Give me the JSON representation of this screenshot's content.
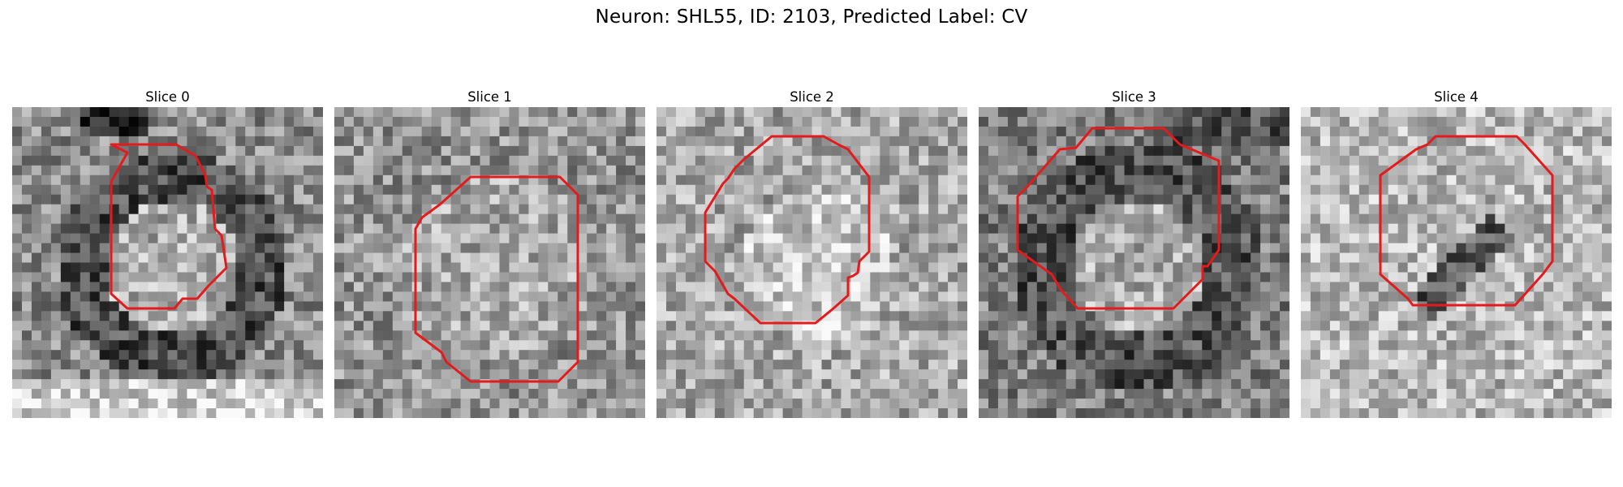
{
  "figure": {
    "title": "Neuron: SHL55, ID: 2103, Predicted Label: CV"
  },
  "panels": [
    {
      "title": "Slice 0",
      "shade": "dark ring around bright center",
      "contour_color": "#e41a1c"
    },
    {
      "title": "Slice 1",
      "shade": "mottled gray",
      "contour_color": "#e41a1c"
    },
    {
      "title": "Slice 2",
      "shade": "light mottled gray",
      "contour_color": "#e41a1c"
    },
    {
      "title": "Slice 3",
      "shade": "dark ring around lighter center",
      "contour_color": "#e41a1c"
    },
    {
      "title": "Slice 4",
      "shade": "light gray with dark spots",
      "contour_color": "#e41a1c"
    }
  ]
}
